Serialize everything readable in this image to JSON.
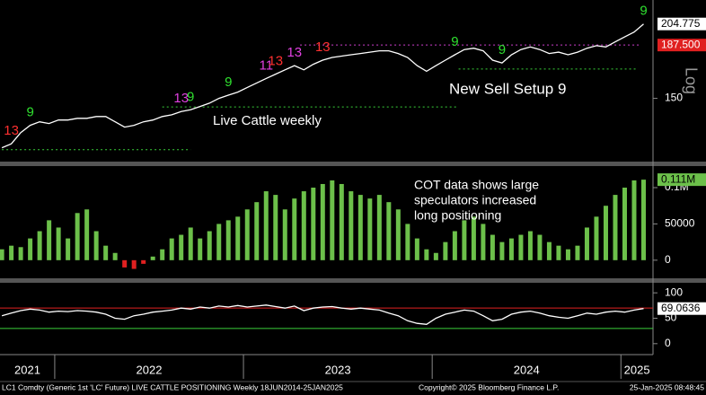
{
  "chart_data": [
    {
      "type": "line",
      "log": true,
      "color": "#ffffff",
      "y_label": "Log",
      "annotations": [
        "Live Cattle weekly",
        "New Sell Setup 9"
      ],
      "xlim": [
        2021.71,
        2025.17
      ],
      "x": [
        2021.72,
        2021.77,
        2021.82,
        2021.87,
        2021.92,
        2021.97,
        2022.02,
        2022.07,
        2022.12,
        2022.17,
        2022.22,
        2022.27,
        2022.32,
        2022.37,
        2022.42,
        2022.47,
        2022.52,
        2022.57,
        2022.62,
        2022.67,
        2022.72,
        2022.77,
        2022.82,
        2022.87,
        2022.92,
        2022.97,
        2023.02,
        2023.07,
        2023.12,
        2023.17,
        2023.22,
        2023.27,
        2023.32,
        2023.37,
        2023.42,
        2023.47,
        2023.52,
        2023.57,
        2023.62,
        2023.67,
        2023.72,
        2023.77,
        2023.82,
        2023.87,
        2023.92,
        2023.97,
        2024.02,
        2024.07,
        2024.12,
        2024.17,
        2024.22,
        2024.27,
        2024.32,
        2024.37,
        2024.42,
        2024.47,
        2024.52,
        2024.57,
        2024.62,
        2024.67,
        2024.72,
        2024.77,
        2024.82,
        2024.87,
        2024.92,
        2024.97,
        2025.02,
        2025.07,
        2025.12
      ],
      "values": [
        122,
        124,
        130,
        134,
        136,
        135,
        137,
        137,
        138,
        138,
        139,
        139,
        136,
        133,
        134,
        136,
        137,
        139,
        140,
        142,
        143,
        145,
        147,
        150,
        152,
        154,
        157,
        160,
        163,
        166,
        169,
        172,
        169,
        173,
        176,
        178,
        179,
        180,
        181,
        182,
        183,
        183,
        181,
        178,
        172,
        168,
        172,
        176,
        180,
        184,
        185,
        183,
        176,
        174,
        180,
        184,
        186,
        184,
        181,
        182,
        180,
        182,
        185,
        187,
        186,
        190,
        194,
        198,
        204.775
      ],
      "ylim": [
        116,
        223
      ],
      "yticks": [
        150
      ],
      "last_box_color": "#ffffff",
      "levels": [
        {
          "value": 121,
          "x": [
            2021.72,
            2022.72
          ],
          "color": "#3ad13a"
        },
        {
          "value": 144.7,
          "x": [
            2022.57,
            2024.14
          ],
          "color": "#3ad13a"
        },
        {
          "value": 169.6,
          "x": [
            2024.14,
            2025.08
          ],
          "color": "#3ad13a"
        },
        {
          "value": {
            "value": 187.5,
            "label": "187.500"
          },
          "x": [
            2023.3,
            2025.1
          ],
          "color": "#e02020"
        }
      ],
      "td_labels": [
        {
          "index": 1,
          "label": "13",
          "color": "#ff3030"
        },
        {
          "index": 3,
          "label": "9",
          "color": "#2fe02f"
        },
        {
          "index": 19,
          "label": "13",
          "color": "#e040e0"
        },
        {
          "index": 20,
          "label": "9",
          "color": "#2fe02f"
        },
        {
          "index": 24,
          "label": "9",
          "color": "#2fe02f"
        },
        {
          "index": 28,
          "label": "11",
          "color": "#e040e0"
        },
        {
          "index": 29,
          "label": "13",
          "color": "#ff3030"
        },
        {
          "index": 31,
          "label": "13",
          "color": "#e040e0"
        },
        {
          "index": 34,
          "label": "13",
          "color": "#ff3030"
        },
        {
          "index": 48,
          "label": "9",
          "color": "#2fe02f"
        },
        {
          "index": 53,
          "label": "9",
          "color": "#2fe02f"
        },
        {
          "index": 68,
          "label": "9",
          "color": "#2fe02f"
        }
      ]
    },
    {
      "type": "bar",
      "color": "#6cc04a",
      "annotations": [
        "COT data shows large",
        "speculators increased",
        "long positioning"
      ],
      "xlim": [
        2021.71,
        2025.17
      ],
      "x": [
        2021.72,
        2021.77,
        2021.82,
        2021.87,
        2021.92,
        2021.97,
        2022.02,
        2022.07,
        2022.12,
        2022.17,
        2022.22,
        2022.27,
        2022.32,
        2022.37,
        2022.42,
        2022.47,
        2022.52,
        2022.57,
        2022.62,
        2022.67,
        2022.72,
        2022.77,
        2022.82,
        2022.87,
        2022.92,
        2022.97,
        2023.02,
        2023.07,
        2023.12,
        2023.17,
        2023.22,
        2023.27,
        2023.32,
        2023.37,
        2023.42,
        2023.47,
        2023.52,
        2023.57,
        2023.62,
        2023.67,
        2023.72,
        2023.77,
        2023.82,
        2023.87,
        2023.92,
        2023.97,
        2024.02,
        2024.07,
        2024.12,
        2024.17,
        2024.22,
        2024.27,
        2024.32,
        2024.37,
        2024.42,
        2024.47,
        2024.52,
        2024.57,
        2024.62,
        2024.67,
        2024.72,
        2024.77,
        2024.82,
        2024.87,
        2024.92,
        2024.97,
        2025.02,
        2025.07,
        2025.12
      ],
      "values": [
        15000,
        20000,
        18000,
        30000,
        40000,
        55000,
        45000,
        30000,
        65000,
        70000,
        40000,
        20000,
        10000,
        -10000,
        -12000,
        -5000,
        5000,
        15000,
        30000,
        35000,
        45000,
        30000,
        40000,
        50000,
        55000,
        60000,
        70000,
        80000,
        95000,
        90000,
        70000,
        85000,
        95000,
        100000,
        105000,
        110000,
        105000,
        95000,
        90000,
        85000,
        90000,
        80000,
        70000,
        50000,
        30000,
        15000,
        10000,
        25000,
        40000,
        55000,
        60000,
        50000,
        35000,
        25000,
        30000,
        35000,
        40000,
        35000,
        25000,
        20000,
        15000,
        20000,
        45000,
        60000,
        75000,
        90000,
        100000,
        110000,
        111000
      ],
      "value_labels": [
        null,
        null,
        null,
        null,
        null,
        null,
        null,
        null,
        null,
        null,
        null,
        null,
        null,
        null,
        null,
        null,
        null,
        null,
        null,
        null,
        null,
        null,
        null,
        null,
        null,
        null,
        null,
        null,
        null,
        null,
        null,
        null,
        null,
        null,
        null,
        null,
        null,
        null,
        null,
        null,
        null,
        null,
        null,
        null,
        null,
        null,
        null,
        null,
        null,
        null,
        null,
        null,
        null,
        null,
        null,
        null,
        null,
        null,
        null,
        null,
        null,
        null,
        null,
        null,
        null,
        null,
        null,
        null,
        "0.111M"
      ],
      "negative_color": "#e02020",
      "ylim": [
        -20000,
        126000
      ],
      "yticks": [
        0,
        50000,
        {
          "value": 100000,
          "label": "0.1M"
        }
      ],
      "last_box_color": "#6cc04a"
    },
    {
      "type": "line",
      "color": "#ffffff",
      "xlim": [
        2021.71,
        2025.17
      ],
      "x": [
        2021.72,
        2021.77,
        2021.82,
        2021.87,
        2021.92,
        2021.97,
        2022.02,
        2022.07,
        2022.12,
        2022.17,
        2022.22,
        2022.27,
        2022.32,
        2022.37,
        2022.42,
        2022.47,
        2022.52,
        2022.57,
        2022.62,
        2022.67,
        2022.72,
        2022.77,
        2022.82,
        2022.87,
        2022.92,
        2022.97,
        2023.02,
        2023.07,
        2023.12,
        2023.17,
        2023.22,
        2023.27,
        2023.32,
        2023.37,
        2023.42,
        2023.47,
        2023.52,
        2023.57,
        2023.62,
        2023.67,
        2023.72,
        2023.77,
        2023.82,
        2023.87,
        2023.92,
        2023.97,
        2024.02,
        2024.07,
        2024.12,
        2024.17,
        2024.22,
        2024.27,
        2024.32,
        2024.37,
        2024.42,
        2024.47,
        2024.52,
        2024.57,
        2024.62,
        2024.67,
        2024.72,
        2024.77,
        2024.82,
        2024.87,
        2024.92,
        2024.97,
        2025.02,
        2025.07,
        2025.12
      ],
      "values": [
        55,
        60,
        65,
        68,
        66,
        62,
        64,
        63,
        65,
        64,
        62,
        58,
        50,
        48,
        55,
        58,
        62,
        64,
        66,
        70,
        68,
        72,
        70,
        74,
        72,
        75,
        72,
        74,
        76,
        73,
        70,
        74,
        65,
        70,
        72,
        73,
        70,
        68,
        70,
        68,
        66,
        60,
        55,
        45,
        40,
        38,
        50,
        58,
        62,
        66,
        64,
        55,
        45,
        48,
        58,
        62,
        64,
        60,
        55,
        52,
        50,
        55,
        60,
        58,
        62,
        64,
        62,
        66,
        69.0636
      ],
      "ylim": [
        -18,
        118
      ],
      "yticks": [
        0,
        50,
        100
      ],
      "last_box_color": "#ffffff",
      "ref_lines": [
        {
          "value": 70,
          "color": "#e02020"
        },
        {
          "value": 30,
          "color": "#3ad13a"
        }
      ],
      "xticks": [
        {
          "value": 2021,
          "label": "2021"
        },
        {
          "value": 2022,
          "label": "2022"
        },
        {
          "value": 2023,
          "label": "2023"
        },
        {
          "value": 2024,
          "label": "2024"
        },
        {
          "value": 2025,
          "label": "2025"
        }
      ]
    }
  ],
  "footer": {
    "left": "LC1 Comdty (Generic 1st 'LC' Future) LIVE CATTLE POSITIONING  Weekly 18JUN2014-25JAN2025",
    "center": "Copyright© 2025 Bloomberg Finance L.P.",
    "right": "25-Jan-2025 08:48:45"
  }
}
